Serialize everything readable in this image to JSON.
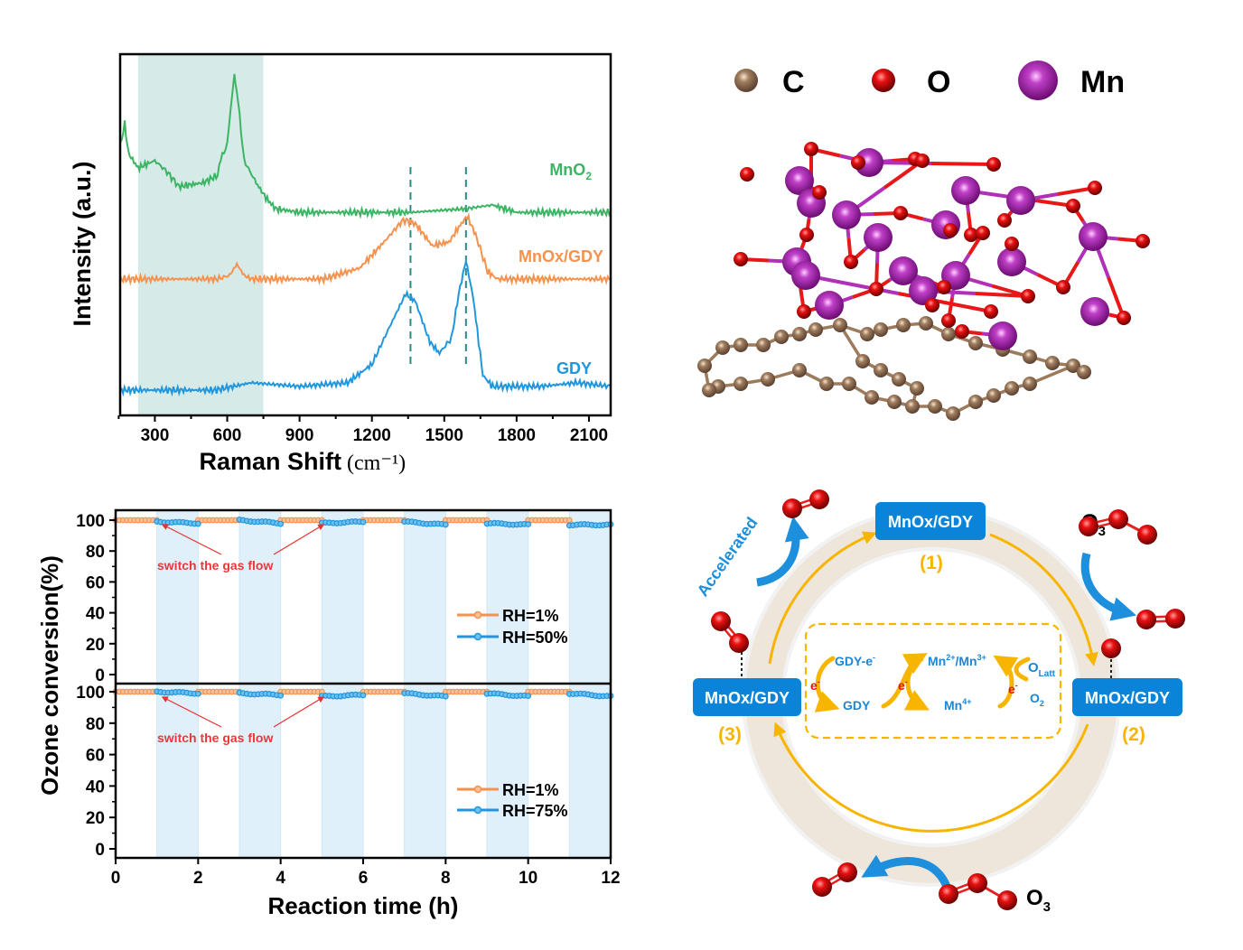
{
  "chart_data": [
    {
      "type": "line",
      "title": "",
      "xlabel": "Raman Shift",
      "xlabel_unit": "(cm⁻¹)",
      "ylabel": "Intensity (a.u.)",
      "xlim": [
        156,
        2190
      ],
      "xticks": [
        300,
        600,
        900,
        1200,
        1500,
        1800,
        2100
      ],
      "shaded_region": [
        230,
        750
      ],
      "reference_lines": [
        1360,
        1590
      ],
      "series": [
        {
          "name": "MnO₂",
          "label_main": "MnO",
          "label_sub": "2",
          "color": "#3cb464",
          "points": [
            [
              156,
              0.66
            ],
            [
              175,
              0.72
            ],
            [
              190,
              0.64
            ],
            [
              230,
              0.6
            ],
            [
              300,
              0.62
            ],
            [
              350,
              0.59
            ],
            [
              400,
              0.55
            ],
            [
              500,
              0.56
            ],
            [
              560,
              0.58
            ],
            [
              580,
              0.64
            ],
            [
              600,
              0.66
            ],
            [
              620,
              0.8
            ],
            [
              630,
              0.85
            ],
            [
              645,
              0.78
            ],
            [
              670,
              0.62
            ],
            [
              720,
              0.56
            ],
            [
              760,
              0.52
            ],
            [
              800,
              0.49
            ],
            [
              900,
              0.48
            ],
            [
              1200,
              0.48
            ],
            [
              1360,
              0.48
            ],
            [
              1590,
              0.49
            ],
            [
              1700,
              0.5
            ],
            [
              1800,
              0.48
            ],
            [
              2190,
              0.48
            ]
          ]
        },
        {
          "name": "MnOx/GDY",
          "label_main": "MnOx/GDY",
          "label_sub": "",
          "color": "#f5924e",
          "points": [
            [
              156,
              0.3
            ],
            [
              560,
              0.3
            ],
            [
              610,
              0.31
            ],
            [
              640,
              0.34
            ],
            [
              670,
              0.31
            ],
            [
              700,
              0.3
            ],
            [
              1000,
              0.3
            ],
            [
              1150,
              0.33
            ],
            [
              1250,
              0.4
            ],
            [
              1330,
              0.46
            ],
            [
              1380,
              0.45
            ],
            [
              1450,
              0.39
            ],
            [
              1520,
              0.4
            ],
            [
              1560,
              0.44
            ],
            [
              1595,
              0.47
            ],
            [
              1630,
              0.42
            ],
            [
              1680,
              0.32
            ],
            [
              1720,
              0.3
            ],
            [
              2190,
              0.3
            ]
          ]
        },
        {
          "name": "GDY",
          "label_main": "GDY",
          "label_sub": "",
          "color": "#2296dc",
          "points": [
            [
              156,
              0.0
            ],
            [
              550,
              0.0
            ],
            [
              700,
              0.02
            ],
            [
              900,
              0.01
            ],
            [
              1100,
              0.02
            ],
            [
              1200,
              0.07
            ],
            [
              1280,
              0.18
            ],
            [
              1340,
              0.26
            ],
            [
              1380,
              0.24
            ],
            [
              1440,
              0.13
            ],
            [
              1480,
              0.1
            ],
            [
              1530,
              0.14
            ],
            [
              1560,
              0.26
            ],
            [
              1590,
              0.35
            ],
            [
              1620,
              0.25
            ],
            [
              1660,
              0.04
            ],
            [
              1700,
              0.01
            ],
            [
              1900,
              0.01
            ],
            [
              2050,
              0.02
            ],
            [
              2190,
              0.01
            ]
          ]
        }
      ]
    },
    {
      "type": "line",
      "title": "",
      "xlabel": "Reaction time (h)",
      "ylabel": "Ozone conversion(%)",
      "xlim": [
        0,
        12
      ],
      "ylim": [
        0,
        100
      ],
      "xticks": [
        0,
        2,
        4,
        6,
        8,
        10,
        12
      ],
      "yticks": [
        0,
        20,
        40,
        60,
        80,
        100
      ],
      "panels": [
        {
          "name": "top",
          "annotation": "switch the gas flow",
          "legend": [
            "RH=1%",
            "RH=50%"
          ],
          "legend_position": "middle-right",
          "series": [
            {
              "name": "RH=1%",
              "color": "#f5924e",
              "segments": [
                [
                  0,
                  1,
                  100,
                  100
                ],
                [
                  2,
                  3,
                  100,
                  100
                ],
                [
                  4,
                  5,
                  100,
                  100
                ],
                [
                  6,
                  7,
                  100,
                  100
                ],
                [
                  8,
                  9,
                  100,
                  100
                ],
                [
                  10,
                  11,
                  100,
                  100
                ]
              ]
            },
            {
              "name": "RH=50%",
              "color": "#2296dc",
              "segments": [
                [
                  1,
                  2,
                  99,
                  98
                ],
                [
                  3,
                  4,
                  100,
                  98
                ],
                [
                  5,
                  6,
                  98,
                  99
                ],
                [
                  7,
                  8,
                  99,
                  97
                ],
                [
                  9,
                  10,
                  98,
                  97
                ],
                [
                  11,
                  12,
                  97,
                  97
                ]
              ]
            }
          ]
        },
        {
          "name": "bottom",
          "annotation": "switch the gas flow",
          "legend": [
            "RH=1%",
            "RH=75%"
          ],
          "legend_position": "bottom-right",
          "series": [
            {
              "name": "RH=1%",
              "color": "#f5924e",
              "segments": [
                [
                  0,
                  1,
                  100,
                  100
                ],
                [
                  2,
                  3,
                  100,
                  100
                ],
                [
                  4,
                  5,
                  100,
                  100
                ],
                [
                  6,
                  7,
                  100,
                  100
                ],
                [
                  8,
                  9,
                  100,
                  100
                ],
                [
                  10,
                  11,
                  100,
                  100
                ]
              ]
            },
            {
              "name": "RH=75%",
              "color": "#2296dc",
              "segments": [
                [
                  1,
                  2,
                  100,
                  99
                ],
                [
                  3,
                  4,
                  99,
                  98
                ],
                [
                  5,
                  6,
                  97,
                  98
                ],
                [
                  7,
                  8,
                  99,
                  97
                ],
                [
                  9,
                  10,
                  99,
                  97
                ],
                [
                  11,
                  12,
                  99,
                  97
                ]
              ]
            }
          ]
        }
      ],
      "shaded_intervals": [
        [
          1,
          2
        ],
        [
          3,
          4
        ],
        [
          5,
          6
        ],
        [
          7,
          8
        ],
        [
          9,
          10
        ],
        [
          11,
          12
        ]
      ]
    }
  ],
  "structure": {
    "legend": [
      {
        "symbol": "C",
        "color": "#8b6a4e"
      },
      {
        "symbol": "O",
        "color": "#e01010"
      },
      {
        "symbol": "Mn",
        "color": "#a020a8"
      }
    ]
  },
  "cycle": {
    "box_label": "MnOx/GDY",
    "step1": "(1)",
    "step2": "(2)",
    "step3": "(3)",
    "accelerated": "Accelerated",
    "o3_label_main": "O",
    "o3_label_sub": "3",
    "inner": {
      "gdy_e": "GDY-e",
      "gdy_e_sup": "-",
      "gdy": "GDY",
      "mn_low": "Mn",
      "mn_low_sup1": "2+",
      "mn_slash": "/Mn",
      "mn_low_sup2": "3+",
      "mn4": "Mn",
      "mn4_sup": "4+",
      "olatt_main": "O",
      "olatt_sub": "Latt",
      "o2_main": "O",
      "o2_sub": "2",
      "electron": "e",
      "electron_sup": "-"
    },
    "colors": {
      "box": "#0a84d8",
      "ring": "#eee6da",
      "arrow": "#f7b500",
      "curve_arrow": "#1e8fdc",
      "step_text": "#f7b500",
      "inner_text": "#1a86d6",
      "electron": "#e81010"
    }
  }
}
